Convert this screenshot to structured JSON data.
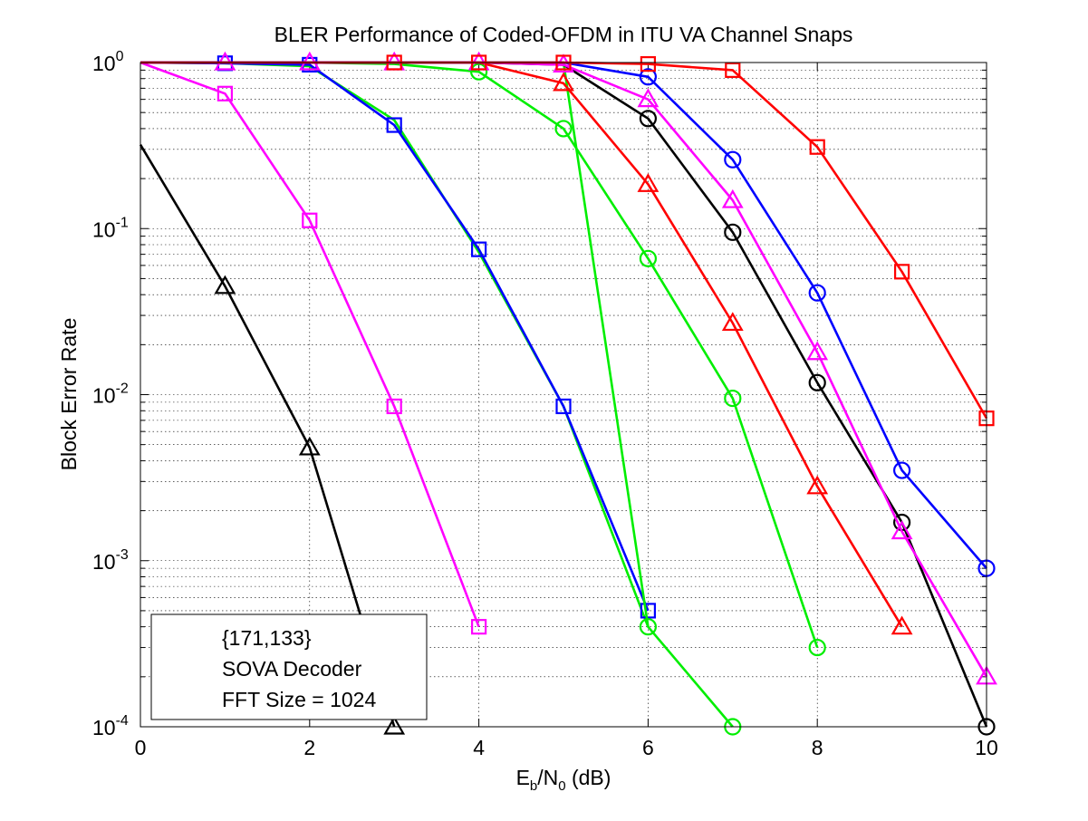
{
  "chart_data": {
    "type": "line",
    "title": "BLER Performance of Coded-OFDM in ITU VA Channel Snaps",
    "xlabel": {
      "base": "E",
      "sub1": "b",
      "mid": "/N",
      "sub2": "0",
      "tail": " (dB)"
    },
    "ylabel": "Block Error Rate",
    "xlim": [
      0,
      10
    ],
    "ylim": [
      0.0001,
      1
    ],
    "yscale": "log",
    "grid": true,
    "x_ticks": [
      {
        "value": 0,
        "label": "0"
      },
      {
        "value": 2,
        "label": "2"
      },
      {
        "value": 4,
        "label": "4"
      },
      {
        "value": 6,
        "label": "6"
      },
      {
        "value": 8,
        "label": "8"
      },
      {
        "value": 10,
        "label": "10"
      }
    ],
    "y_ticks": [
      {
        "value": 1,
        "base": "10",
        "exp": "0"
      },
      {
        "value": 0.1,
        "base": "10",
        "exp": "-1"
      },
      {
        "value": 0.01,
        "base": "10",
        "exp": "-2"
      },
      {
        "value": 0.001,
        "base": "10",
        "exp": "-3"
      },
      {
        "value": 0.0001,
        "base": "10",
        "exp": "-4"
      }
    ],
    "annotation": {
      "lines": [
        "{171,133}",
        "SOVA Decoder",
        "FFT Size = 1024"
      ],
      "placement": "bottom-left"
    },
    "series": [
      {
        "color": "#000000",
        "marker": "triangle",
        "points": [
          [
            0,
            0.32
          ],
          [
            1,
            0.045
          ],
          [
            2,
            0.0048
          ],
          [
            3,
            0.0001
          ]
        ],
        "marker_from": 1
      },
      {
        "color": "#ff00ff",
        "marker": "square",
        "points": [
          [
            0,
            1.0
          ],
          [
            1,
            0.65
          ],
          [
            2,
            0.112
          ],
          [
            3,
            0.0085
          ],
          [
            4,
            0.0004
          ]
        ],
        "marker_from": 1
      },
      {
        "color": "#00ee00",
        "marker": "square",
        "points": [
          [
            0,
            1.0
          ],
          [
            1,
            0.99
          ],
          [
            2,
            0.95
          ],
          [
            3,
            0.45
          ],
          [
            4,
            0.072
          ],
          [
            5,
            0.0085
          ],
          [
            6,
            0.0004
          ]
        ],
        "marker_from": 99
      },
      {
        "color": "#0000ff",
        "marker": "square",
        "points": [
          [
            0,
            1.0
          ],
          [
            1,
            0.99
          ],
          [
            2,
            0.97
          ],
          [
            3,
            0.42
          ],
          [
            4,
            0.075
          ],
          [
            5,
            0.0085
          ],
          [
            6,
            0.0005
          ]
        ],
        "marker_from": 1
      },
      {
        "color": "#00ee00",
        "marker": "circle",
        "points": [
          [
            0,
            1.0
          ],
          [
            1,
            1.0
          ],
          [
            2,
            1.0
          ],
          [
            3,
            0.98
          ],
          [
            4,
            0.88
          ],
          [
            5,
            0.4
          ],
          [
            6,
            0.066
          ],
          [
            7,
            0.0095
          ],
          [
            8,
            0.0003
          ]
        ],
        "marker_from": 4
      },
      {
        "color": "#00ee00",
        "marker": "circle",
        "points": [
          [
            0,
            1.0
          ],
          [
            1,
            1.0
          ],
          [
            2,
            1.0
          ],
          [
            3,
            1.0
          ],
          [
            4,
            1.0
          ],
          [
            5,
            1.0
          ],
          [
            6,
            0.0004
          ],
          [
            7,
            0.0001
          ]
        ],
        "marker_from": 6
      },
      {
        "color": "#ff0000",
        "marker": "triangle",
        "points": [
          [
            0,
            1.0
          ],
          [
            1,
            1.0
          ],
          [
            2,
            1.0
          ],
          [
            3,
            1.0
          ],
          [
            4,
            1.0
          ],
          [
            5,
            0.75
          ],
          [
            6,
            0.185
          ],
          [
            7,
            0.027
          ],
          [
            8,
            0.0028
          ],
          [
            9,
            0.0004
          ]
        ],
        "marker_from": 5
      },
      {
        "color": "#000000",
        "marker": "circle",
        "points": [
          [
            0,
            1.0
          ],
          [
            1,
            1.0
          ],
          [
            2,
            1.0
          ],
          [
            3,
            1.0
          ],
          [
            4,
            1.0
          ],
          [
            5,
            0.97
          ],
          [
            6,
            0.46
          ],
          [
            7,
            0.095
          ],
          [
            8,
            0.0118
          ],
          [
            9,
            0.0017
          ],
          [
            10,
            0.0001
          ]
        ],
        "marker_from": 6
      },
      {
        "color": "#ff00ff",
        "marker": "triangle",
        "points": [
          [
            0,
            1.0
          ],
          [
            1,
            1.0
          ],
          [
            2,
            1.0
          ],
          [
            3,
            1.0
          ],
          [
            4,
            1.0
          ],
          [
            5,
            0.97
          ],
          [
            6,
            0.6
          ],
          [
            7,
            0.148
          ],
          [
            8,
            0.018
          ],
          [
            9,
            0.0015
          ],
          [
            10,
            0.0002
          ]
        ],
        "marker_from": 1
      },
      {
        "color": "#0000ff",
        "marker": "circle",
        "points": [
          [
            0,
            1.0
          ],
          [
            1,
            1.0
          ],
          [
            2,
            1.0
          ],
          [
            3,
            1.0
          ],
          [
            4,
            1.0
          ],
          [
            5,
            1.0
          ],
          [
            6,
            0.82
          ],
          [
            7,
            0.26
          ],
          [
            8,
            0.041
          ],
          [
            9,
            0.0035
          ],
          [
            10,
            0.0009
          ]
        ],
        "marker_from": 6
      },
      {
        "color": "#ff0000",
        "marker": "square",
        "points": [
          [
            0,
            1.0
          ],
          [
            1,
            1.0
          ],
          [
            2,
            1.0
          ],
          [
            3,
            1.0
          ],
          [
            4,
            1.0
          ],
          [
            5,
            1.0
          ],
          [
            6,
            0.98
          ],
          [
            7,
            0.9
          ],
          [
            8,
            0.31
          ],
          [
            9,
            0.055
          ],
          [
            10,
            0.0072
          ]
        ],
        "marker_from": 3
      }
    ]
  }
}
